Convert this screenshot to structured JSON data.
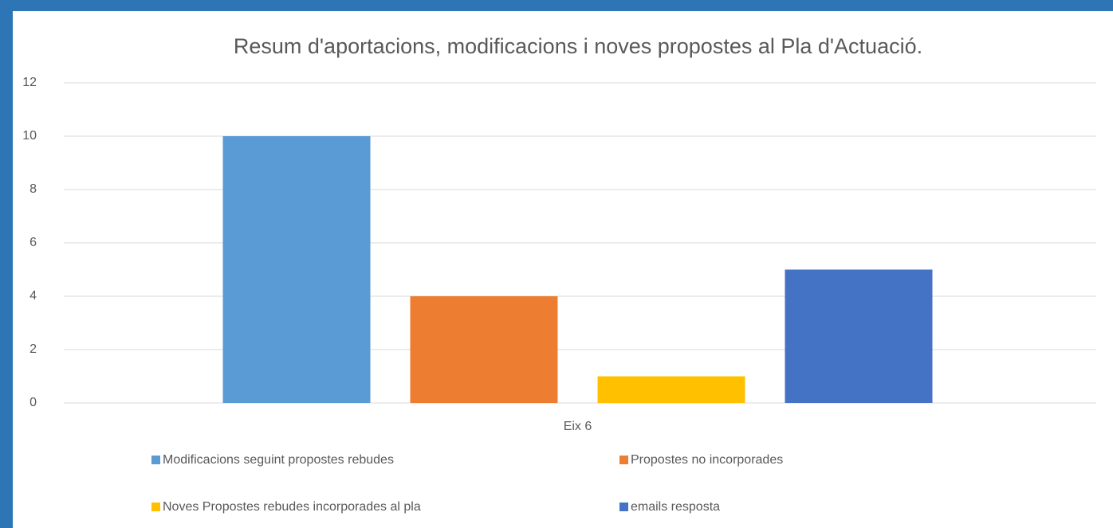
{
  "chart_data": {
    "type": "bar",
    "title": "Resum d'aportacions, modificacions i noves propostes al Pla d'Actuació.",
    "categories": [
      "Eix 6"
    ],
    "series": [
      {
        "name": "Modificacions seguint propostes rebudes",
        "color": "#5b9bd5",
        "values": [
          10
        ]
      },
      {
        "name": "Propostes no incorporades",
        "color": "#ed7d31",
        "values": [
          4
        ]
      },
      {
        "name": "Noves Propostes rebudes incorporades al pla",
        "color": "#ffc000",
        "values": [
          1
        ]
      },
      {
        "name": "emails resposta",
        "color": "#4472c4",
        "values": [
          5
        ]
      }
    ],
    "ylim": [
      0,
      12
    ],
    "yticks": [
      0,
      2,
      4,
      6,
      8,
      10,
      12
    ],
    "grid": true,
    "legend": "bottom"
  }
}
